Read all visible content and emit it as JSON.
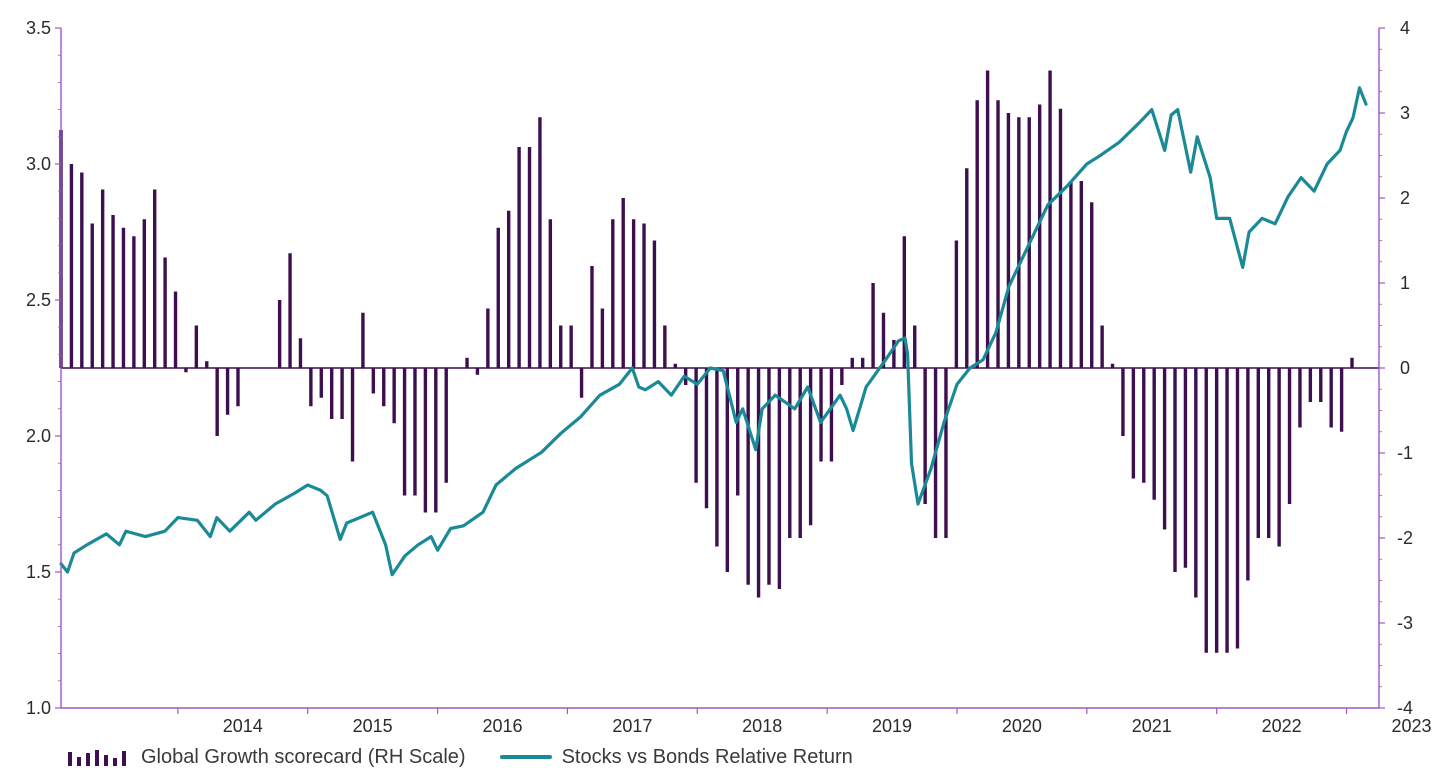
{
  "chart_data": {
    "type": "bar+line",
    "title": "",
    "left_axis": {
      "range": [
        1.0,
        3.5
      ],
      "ticks": [
        "1.0",
        "1.5",
        "2.0",
        "2.5",
        "3.0",
        "3.5"
      ]
    },
    "right_axis": {
      "range": [
        -4,
        4
      ],
      "ticks": [
        "-4",
        "-3",
        "-2",
        "-1",
        "0",
        "1",
        "2",
        "3",
        "4"
      ]
    },
    "x_axis": {
      "range": [
        2013.1,
        2023.25
      ],
      "ticks": [
        "2014",
        "2015",
        "2016",
        "2017",
        "2018",
        "2019",
        "2020",
        "2021",
        "2022",
        "2023"
      ]
    },
    "colors": {
      "bars": "#3d0f4f",
      "line": "#1a8a96",
      "axis": "#9c59c4"
    },
    "series": [
      {
        "name": "Global Growth scorecard (RH Scale)",
        "axis": "right",
        "type": "bar",
        "values": [
          2.8,
          2.4,
          2.3,
          1.7,
          2.1,
          1.8,
          1.65,
          1.55,
          1.75,
          2.1,
          1.3,
          0.9,
          -0.05,
          0.5,
          0.08,
          -0.8,
          -0.55,
          -0.45,
          0,
          0,
          0,
          0.8,
          1.35,
          0.35,
          -0.45,
          -0.35,
          -0.6,
          -0.6,
          -1.1,
          0.65,
          -0.3,
          -0.45,
          -0.65,
          -1.5,
          -1.5,
          -1.7,
          -1.7,
          -1.35,
          0,
          0.12,
          -0.08,
          0.7,
          1.65,
          1.85,
          2.6,
          2.6,
          2.95,
          1.75,
          0.5,
          0.5,
          -0.35,
          1.2,
          0.7,
          1.75,
          2.0,
          1.75,
          1.7,
          1.5,
          0.5,
          0.05,
          -0.2,
          -1.35,
          -1.65,
          -2.1,
          -2.4,
          -1.5,
          -2.55,
          -2.7,
          -2.55,
          -2.6,
          -2.0,
          -2.0,
          -1.85,
          -1.1,
          -1.1,
          -0.2,
          0.12,
          0.12,
          1.0,
          0.65,
          0.33,
          1.55,
          0.5,
          -1.6,
          -2.0,
          -2.0,
          1.5,
          2.35,
          3.15,
          3.5,
          3.15,
          3.0,
          2.95,
          2.95,
          3.1,
          3.5,
          3.05,
          2.2,
          2.2,
          1.95,
          0.5,
          0.05,
          -0.8,
          -1.3,
          -1.35,
          -1.55,
          -1.9,
          -2.4,
          -2.35,
          -2.7,
          -3.35,
          -3.35,
          -3.35,
          -3.3,
          -2.5,
          -2.0,
          -2.0,
          -2.1,
          -1.6,
          -0.7,
          -0.4,
          -0.4,
          -0.7,
          -0.75,
          0.12
        ]
      },
      {
        "name": "Stocks vs Bonds Relative Return",
        "axis": "left",
        "type": "line",
        "x": [
          2013.1,
          2013.15,
          2013.2,
          2013.3,
          2013.45,
          2013.55,
          2013.6,
          2013.75,
          2013.9,
          2014.0,
          2014.15,
          2014.25,
          2014.3,
          2014.4,
          2014.55,
          2014.6,
          2014.75,
          2014.9,
          2015.0,
          2015.1,
          2015.15,
          2015.25,
          2015.3,
          2015.4,
          2015.5,
          2015.6,
          2015.65,
          2015.75,
          2015.85,
          2015.95,
          2016.0,
          2016.1,
          2016.2,
          2016.35,
          2016.45,
          2016.6,
          2016.8,
          2016.95,
          2017.1,
          2017.25,
          2017.4,
          2017.5,
          2017.55,
          2017.6,
          2017.7,
          2017.8,
          2017.9,
          2018.0,
          2018.1,
          2018.2,
          2018.3,
          2018.35,
          2018.45,
          2018.5,
          2018.6,
          2018.75,
          2018.85,
          2018.95,
          2019.1,
          2019.15,
          2019.2,
          2019.3,
          2019.45,
          2019.55,
          2019.6,
          2019.62,
          2019.65,
          2019.7,
          2019.8,
          2019.9,
          2020.0,
          2020.1,
          2020.2,
          2020.3,
          2020.4,
          2020.55,
          2020.7,
          2020.85,
          2021.0,
          2021.1,
          2021.25,
          2021.4,
          2021.5,
          2021.6,
          2021.65,
          2021.7,
          2021.8,
          2021.85,
          2021.95,
          2022.0,
          2022.1,
          2022.2,
          2022.25,
          2022.35,
          2022.45,
          2022.55,
          2022.65,
          2022.75,
          2022.85,
          2022.95,
          2023.0,
          2023.05,
          2023.1,
          2023.15
        ],
        "values": [
          1.53,
          1.5,
          1.57,
          1.6,
          1.64,
          1.6,
          1.65,
          1.63,
          1.65,
          1.7,
          1.69,
          1.63,
          1.7,
          1.65,
          1.72,
          1.69,
          1.75,
          1.79,
          1.82,
          1.8,
          1.78,
          1.62,
          1.68,
          1.7,
          1.72,
          1.6,
          1.49,
          1.56,
          1.6,
          1.63,
          1.58,
          1.66,
          1.67,
          1.72,
          1.82,
          1.88,
          1.94,
          2.01,
          2.07,
          2.15,
          2.19,
          2.25,
          2.18,
          2.17,
          2.2,
          2.15,
          2.22,
          2.19,
          2.25,
          2.24,
          2.05,
          2.1,
          1.95,
          2.1,
          2.15,
          2.1,
          2.18,
          2.05,
          2.15,
          2.1,
          2.02,
          2.18,
          2.28,
          2.35,
          2.36,
          2.3,
          1.9,
          1.75,
          1.88,
          2.05,
          2.19,
          2.25,
          2.28,
          2.38,
          2.55,
          2.7,
          2.85,
          2.92,
          3.0,
          3.03,
          3.08,
          3.15,
          3.2,
          3.05,
          3.18,
          3.2,
          2.97,
          3.1,
          2.95,
          2.8,
          2.8,
          2.62,
          2.75,
          2.8,
          2.78,
          2.88,
          2.95,
          2.9,
          3.0,
          3.05,
          3.12,
          3.17,
          3.28,
          3.22
        ]
      }
    ]
  },
  "legend": [
    {
      "label": "Global Growth scorecard (RH Scale)"
    },
    {
      "label": "Stocks vs Bonds Relative Return"
    }
  ]
}
